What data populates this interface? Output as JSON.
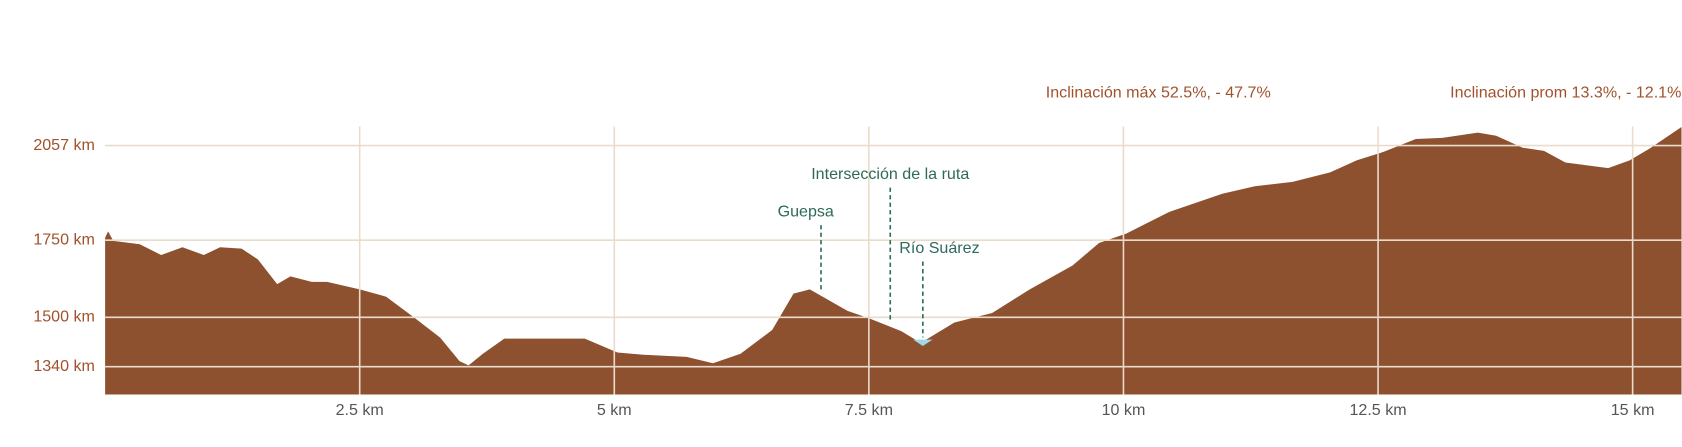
{
  "chart_data": {
    "type": "area",
    "notes": [
      "Inclinación máx 52.5%, - 47.7%",
      "Inclinación prom 13.3%, - 12.1%"
    ],
    "x": [
      0,
      0.03,
      0.08,
      0.34,
      0.55,
      0.76,
      0.97,
      1.13,
      1.34,
      1.5,
      1.69,
      1.82,
      2.03,
      2.18,
      2.5,
      2.76,
      3.03,
      3.29,
      3.48,
      3.57,
      3.71,
      3.92,
      4.13,
      4.71,
      5.03,
      5.29,
      5.71,
      5.97,
      6.24,
      6.55,
      6.76,
      6.92,
      7.29,
      7.5,
      7.82,
      8.01,
      8.34,
      8.71,
      9.08,
      9.5,
      9.76,
      10.03,
      10.45,
      10.97,
      11.29,
      11.66,
      12.03,
      12.29,
      12.55,
      12.87,
      13.13,
      13.48,
      13.66,
      13.92,
      14.13,
      14.34,
      14.76,
      14.97,
      15.18,
      15.48
    ],
    "values": [
      1758,
      1779,
      1748,
      1737,
      1702,
      1727,
      1702,
      1727,
      1723,
      1688,
      1608,
      1633,
      1615,
      1615,
      1591,
      1567,
      1501,
      1434,
      1358,
      1344,
      1382,
      1431,
      1431,
      1431,
      1386,
      1379,
      1372,
      1351,
      1382,
      1459,
      1577,
      1591,
      1521,
      1497,
      1455,
      1417,
      1483,
      1514,
      1591,
      1668,
      1741,
      1772,
      1842,
      1901,
      1925,
      1939,
      1970,
      2009,
      2036,
      2078,
      2082,
      2099,
      2089,
      2050,
      2040,
      2002,
      1984,
      2009,
      2050,
      2117
    ],
    "color": "#8d5130",
    "xlim": [
      0,
      15.5
    ],
    "ylim": [
      1250,
      2150
    ],
    "xticks": [
      {
        "value": 2.5,
        "label": "2.5 km"
      },
      {
        "value": 5,
        "label": "5 km"
      },
      {
        "value": 7.5,
        "label": "7.5 km"
      },
      {
        "value": 10,
        "label": "10 km"
      },
      {
        "value": 12.5,
        "label": "12.5 km"
      },
      {
        "value": 15,
        "label": "15 km"
      }
    ],
    "yticks": [
      {
        "value": 2057,
        "label": "2057 km"
      },
      {
        "value": 1750,
        "label": "1750 km"
      },
      {
        "value": 1500,
        "label": "1500 km"
      },
      {
        "value": 1340,
        "label": "1340 km"
      }
    ],
    "grid": true,
    "annotations": [
      {
        "text": "Guepsa",
        "x": 7.03
      },
      {
        "text": "Intersección de la ruta",
        "x": 7.71
      },
      {
        "text": "Río Suárez",
        "x": 8.03
      }
    ]
  }
}
